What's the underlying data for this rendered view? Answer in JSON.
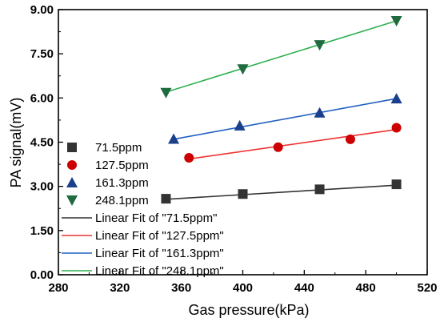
{
  "chart_data": {
    "type": "scatter",
    "xlabel": "Gas pressure(kPa)",
    "ylabel": "PA signal(mV)",
    "xlim": [
      280,
      520
    ],
    "ylim": [
      0,
      9
    ],
    "xticks": [
      "280",
      "320",
      "360",
      "400",
      "440",
      "480",
      "520"
    ],
    "yticks": [
      "0.00",
      "1.50",
      "3.00",
      "4.50",
      "6.00",
      "7.50",
      "9.00"
    ],
    "grid": false,
    "legend_position": "left",
    "series": [
      {
        "name": "71.5ppm",
        "marker": "square",
        "color": "#333333",
        "x": [
          350,
          400,
          450,
          500
        ],
        "y": [
          2.58,
          2.74,
          2.9,
          3.07
        ],
        "fit_name": "Linear Fit of \"71.5ppm\"",
        "fit_color": "#333333",
        "fit_x": [
          350,
          500
        ],
        "fit_y": [
          2.56,
          3.04
        ]
      },
      {
        "name": "127.5ppm",
        "marker": "circle",
        "color": "#cc0000",
        "x": [
          365,
          423,
          470,
          500
        ],
        "y": [
          3.97,
          4.33,
          4.6,
          4.99
        ],
        "fit_name": "Linear Fit of \"127.5ppm\"",
        "fit_color": "#ee3333",
        "fit_x": [
          365,
          500
        ],
        "fit_y": [
          3.93,
          4.93
        ]
      },
      {
        "name": "161.3ppm",
        "marker": "triangle-up",
        "color": "#1a3f8c",
        "x": [
          355,
          398,
          450,
          500
        ],
        "y": [
          4.61,
          5.06,
          5.5,
          5.98
        ],
        "fit_name": "Linear Fit of \"161.3ppm\"",
        "fit_color": "#2060c0",
        "fit_x": [
          355,
          500
        ],
        "fit_y": [
          4.6,
          5.98
        ]
      },
      {
        "name": "248.1ppm",
        "marker": "triangle-down",
        "color": "#1f6b3f",
        "x": [
          350,
          400,
          450,
          500
        ],
        "y": [
          6.18,
          6.98,
          7.8,
          8.62
        ],
        "fit_name": "Linear Fit of \"248.1ppm\"",
        "fit_color": "#2fb050",
        "fit_x": [
          350,
          500
        ],
        "fit_y": [
          6.2,
          8.62
        ]
      }
    ]
  }
}
